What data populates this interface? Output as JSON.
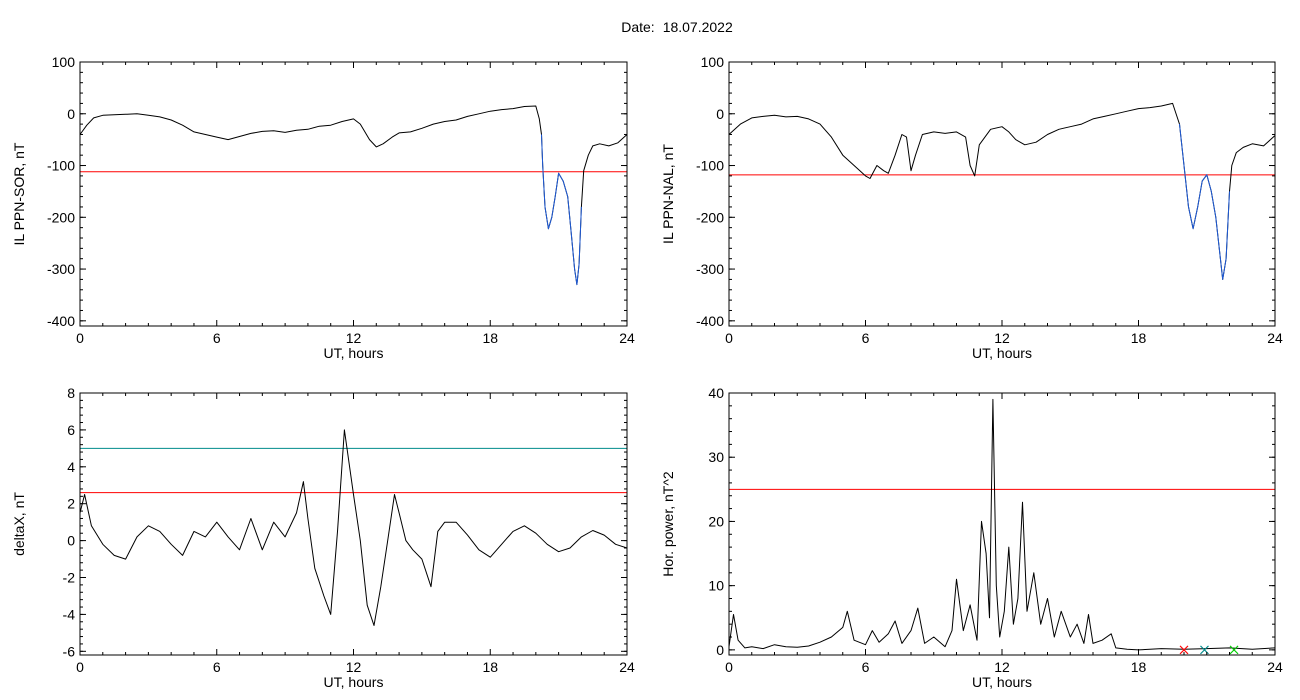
{
  "header": {
    "label": "Date:",
    "value": "18.07.2022"
  },
  "colors": {
    "data": "#000000",
    "threshold_red": "#ff0000",
    "threshold_cyan": "#008b8b",
    "storm_segment": "#1e5bd8",
    "markers": [
      "#ff0000",
      "#008b8b",
      "#00cc00"
    ]
  },
  "chart_data": [
    {
      "type": "line",
      "xlabel": "UT, hours",
      "ylabel": "IL PPN-SOR, nT",
      "xlim": [
        0,
        24
      ],
      "ylim": [
        -410,
        100
      ],
      "xticks": [
        0,
        6,
        12,
        18,
        24
      ],
      "yticks": [
        -400,
        -300,
        -200,
        -100,
        0,
        100
      ],
      "thresholds": [
        {
          "value": -112,
          "color": "#ff0000"
        }
      ],
      "highlight": {
        "from": 20.2,
        "to": 22.0,
        "color": "#1e5bd8"
      },
      "series": [
        {
          "points": [
            [
              0,
              -40
            ],
            [
              0.3,
              -22
            ],
            [
              0.6,
              -8
            ],
            [
              1,
              -3
            ],
            [
              1.5,
              -2
            ],
            [
              2,
              -1
            ],
            [
              2.5,
              0
            ],
            [
              3,
              -3
            ],
            [
              3.5,
              -6
            ],
            [
              4,
              -12
            ],
            [
              4.5,
              -22
            ],
            [
              5,
              -35
            ],
            [
              5.5,
              -40
            ],
            [
              6,
              -45
            ],
            [
              6.5,
              -50
            ],
            [
              7,
              -44
            ],
            [
              7.5,
              -38
            ],
            [
              8,
              -34
            ],
            [
              8.5,
              -33
            ],
            [
              9,
              -36
            ],
            [
              9.5,
              -32
            ],
            [
              10,
              -30
            ],
            [
              10.5,
              -24
            ],
            [
              11,
              -22
            ],
            [
              11.5,
              -15
            ],
            [
              12,
              -10
            ],
            [
              12.3,
              -20
            ],
            [
              12.7,
              -50
            ],
            [
              13,
              -64
            ],
            [
              13.3,
              -58
            ],
            [
              13.7,
              -45
            ],
            [
              14,
              -37
            ],
            [
              14.5,
              -35
            ],
            [
              15,
              -28
            ],
            [
              15.5,
              -20
            ],
            [
              16,
              -15
            ],
            [
              16.5,
              -12
            ],
            [
              17,
              -5
            ],
            [
              17.5,
              0
            ],
            [
              18,
              5
            ],
            [
              18.5,
              8
            ],
            [
              19,
              10
            ],
            [
              19.5,
              14
            ],
            [
              20,
              15
            ],
            [
              20.15,
              -10
            ],
            [
              20.25,
              -40
            ],
            [
              20.3,
              -100
            ],
            [
              20.4,
              -180
            ],
            [
              20.55,
              -222
            ],
            [
              20.7,
              -200
            ],
            [
              20.85,
              -160
            ],
            [
              21,
              -115
            ],
            [
              21.2,
              -130
            ],
            [
              21.4,
              -160
            ],
            [
              21.55,
              -230
            ],
            [
              21.7,
              -300
            ],
            [
              21.8,
              -330
            ],
            [
              21.9,
              -290
            ],
            [
              22,
              -180
            ],
            [
              22.1,
              -110
            ],
            [
              22.3,
              -80
            ],
            [
              22.5,
              -62
            ],
            [
              22.8,
              -58
            ],
            [
              23.2,
              -62
            ],
            [
              23.6,
              -56
            ],
            [
              24,
              -40
            ]
          ]
        }
      ]
    },
    {
      "type": "line",
      "xlabel": "UT, hours",
      "ylabel": "IL PPN-NAL, nT",
      "xlim": [
        0,
        24
      ],
      "ylim": [
        -410,
        100
      ],
      "xticks": [
        0,
        6,
        12,
        18,
        24
      ],
      "yticks": [
        -400,
        -300,
        -200,
        -100,
        0,
        100
      ],
      "thresholds": [
        {
          "value": -118,
          "color": "#ff0000"
        }
      ],
      "highlight": {
        "from": 19.8,
        "to": 22.0,
        "color": "#1e5bd8"
      },
      "series": [
        {
          "points": [
            [
              0,
              -40
            ],
            [
              0.5,
              -20
            ],
            [
              1,
              -8
            ],
            [
              1.5,
              -5
            ],
            [
              2,
              -3
            ],
            [
              2.5,
              -6
            ],
            [
              3,
              -5
            ],
            [
              3.5,
              -10
            ],
            [
              4,
              -20
            ],
            [
              4.5,
              -45
            ],
            [
              5,
              -80
            ],
            [
              5.5,
              -100
            ],
            [
              6,
              -120
            ],
            [
              6.2,
              -125
            ],
            [
              6.5,
              -100
            ],
            [
              6.8,
              -110
            ],
            [
              7,
              -115
            ],
            [
              7.3,
              -80
            ],
            [
              7.6,
              -40
            ],
            [
              7.8,
              -45
            ],
            [
              8,
              -110
            ],
            [
              8.2,
              -80
            ],
            [
              8.5,
              -40
            ],
            [
              9,
              -35
            ],
            [
              9.5,
              -38
            ],
            [
              10,
              -35
            ],
            [
              10.4,
              -45
            ],
            [
              10.6,
              -100
            ],
            [
              10.8,
              -120
            ],
            [
              11,
              -60
            ],
            [
              11.5,
              -30
            ],
            [
              12,
              -25
            ],
            [
              12.3,
              -35
            ],
            [
              12.6,
              -50
            ],
            [
              13,
              -60
            ],
            [
              13.5,
              -55
            ],
            [
              14,
              -40
            ],
            [
              14.5,
              -30
            ],
            [
              15,
              -25
            ],
            [
              15.5,
              -20
            ],
            [
              16,
              -10
            ],
            [
              16.5,
              -5
            ],
            [
              17,
              0
            ],
            [
              17.5,
              5
            ],
            [
              18,
              10
            ],
            [
              18.5,
              12
            ],
            [
              19,
              15
            ],
            [
              19.5,
              20
            ],
            [
              19.8,
              -20
            ],
            [
              20,
              -100
            ],
            [
              20.2,
              -180
            ],
            [
              20.4,
              -222
            ],
            [
              20.6,
              -180
            ],
            [
              20.8,
              -130
            ],
            [
              21,
              -118
            ],
            [
              21.2,
              -150
            ],
            [
              21.4,
              -200
            ],
            [
              21.6,
              -280
            ],
            [
              21.7,
              -320
            ],
            [
              21.85,
              -280
            ],
            [
              22,
              -150
            ],
            [
              22.1,
              -100
            ],
            [
              22.3,
              -75
            ],
            [
              22.6,
              -65
            ],
            [
              23,
              -58
            ],
            [
              23.5,
              -62
            ],
            [
              24,
              -42
            ]
          ]
        }
      ]
    },
    {
      "type": "line",
      "xlabel": "UT, hours",
      "ylabel": "deltaX, nT",
      "xlim": [
        0,
        24
      ],
      "ylim": [
        -6.2,
        8
      ],
      "xticks": [
        0,
        6,
        12,
        18,
        24
      ],
      "yticks": [
        -6,
        -4,
        -2,
        0,
        2,
        4,
        6,
        8
      ],
      "thresholds": [
        {
          "value": 5.0,
          "color": "#008b8b"
        },
        {
          "value": 2.6,
          "color": "#ff0000"
        }
      ],
      "series": [
        {
          "points": [
            [
              0,
              1.5
            ],
            [
              0.2,
              2.5
            ],
            [
              0.5,
              0.8
            ],
            [
              1,
              -0.2
            ],
            [
              1.5,
              -0.8
            ],
            [
              2,
              -1
            ],
            [
              2.5,
              0.2
            ],
            [
              3,
              0.8
            ],
            [
              3.5,
              0.5
            ],
            [
              4,
              -0.2
            ],
            [
              4.5,
              -0.8
            ],
            [
              5,
              0.5
            ],
            [
              5.5,
              0.2
            ],
            [
              6,
              1.0
            ],
            [
              6.5,
              0.2
            ],
            [
              7,
              -0.5
            ],
            [
              7.5,
              1.2
            ],
            [
              8,
              -0.5
            ],
            [
              8.5,
              1.0
            ],
            [
              9,
              0.2
            ],
            [
              9.5,
              1.5
            ],
            [
              9.8,
              3.2
            ],
            [
              10,
              1.2
            ],
            [
              10.3,
              -1.5
            ],
            [
              10.7,
              -3
            ],
            [
              11,
              -4
            ],
            [
              11.3,
              0.5
            ],
            [
              11.6,
              6.0
            ],
            [
              12,
              2.5
            ],
            [
              12.3,
              0
            ],
            [
              12.6,
              -3.5
            ],
            [
              12.9,
              -4.6
            ],
            [
              13.2,
              -2.5
            ],
            [
              13.5,
              0
            ],
            [
              13.8,
              2.5
            ],
            [
              14,
              1.5
            ],
            [
              14.3,
              0
            ],
            [
              14.6,
              -0.5
            ],
            [
              15,
              -1
            ],
            [
              15.4,
              -2.5
            ],
            [
              15.7,
              0.5
            ],
            [
              16,
              1.0
            ],
            [
              16.5,
              1.0
            ],
            [
              17,
              0.3
            ],
            [
              17.5,
              -0.5
            ],
            [
              18,
              -0.9
            ],
            [
              18.5,
              -0.2
            ],
            [
              19,
              0.5
            ],
            [
              19.5,
              0.8
            ],
            [
              20,
              0.4
            ],
            [
              20.5,
              -0.2
            ],
            [
              21,
              -0.6
            ],
            [
              21.5,
              -0.4
            ],
            [
              22,
              0.2
            ],
            [
              22.5,
              0.55
            ],
            [
              23,
              0.3
            ],
            [
              23.5,
              -0.2
            ],
            [
              24,
              -0.4
            ]
          ]
        }
      ]
    },
    {
      "type": "line",
      "xlabel": "UT, hours",
      "ylabel": "Hor. power, nT^2",
      "xlim": [
        0,
        24
      ],
      "ylim": [
        -0.8,
        40
      ],
      "xticks": [
        0,
        6,
        12,
        18,
        24
      ],
      "yticks": [
        0,
        10,
        20,
        30,
        40
      ],
      "thresholds": [
        {
          "value": 25,
          "color": "#ff0000"
        }
      ],
      "markers": [
        {
          "x": 20.0,
          "y": 0,
          "color": "#ff0000"
        },
        {
          "x": 20.9,
          "y": 0,
          "color": "#008b8b"
        },
        {
          "x": 22.2,
          "y": 0,
          "color": "#00cc00"
        }
      ],
      "series": [
        {
          "points": [
            [
              0,
              0.5
            ],
            [
              0.2,
              5.5
            ],
            [
              0.4,
              1.5
            ],
            [
              0.7,
              0.3
            ],
            [
              1,
              0.5
            ],
            [
              1.5,
              0.2
            ],
            [
              2,
              0.8
            ],
            [
              2.5,
              0.5
            ],
            [
              3,
              0.4
            ],
            [
              3.5,
              0.6
            ],
            [
              4,
              1.2
            ],
            [
              4.5,
              2.0
            ],
            [
              5,
              3.5
            ],
            [
              5.2,
              6.0
            ],
            [
              5.5,
              1.5
            ],
            [
              6,
              0.8
            ],
            [
              6.3,
              3.0
            ],
            [
              6.6,
              1.2
            ],
            [
              7,
              2.5
            ],
            [
              7.3,
              4.5
            ],
            [
              7.6,
              1.0
            ],
            [
              8,
              3.0
            ],
            [
              8.3,
              6.5
            ],
            [
              8.6,
              1.0
            ],
            [
              9,
              2.0
            ],
            [
              9.5,
              0.5
            ],
            [
              9.8,
              3.0
            ],
            [
              10,
              11
            ],
            [
              10.3,
              3
            ],
            [
              10.6,
              7
            ],
            [
              10.9,
              1.5
            ],
            [
              11.1,
              20
            ],
            [
              11.3,
              15
            ],
            [
              11.45,
              5
            ],
            [
              11.6,
              39
            ],
            [
              11.75,
              10
            ],
            [
              11.9,
              2
            ],
            [
              12.1,
              6
            ],
            [
              12.3,
              16
            ],
            [
              12.5,
              4
            ],
            [
              12.7,
              8
            ],
            [
              12.9,
              23
            ],
            [
              13.1,
              6
            ],
            [
              13.4,
              12
            ],
            [
              13.7,
              4
            ],
            [
              14,
              8
            ],
            [
              14.3,
              2
            ],
            [
              14.6,
              6
            ],
            [
              15,
              2
            ],
            [
              15.3,
              4
            ],
            [
              15.6,
              1
            ],
            [
              15.8,
              5.5
            ],
            [
              16,
              1
            ],
            [
              16.4,
              1.5
            ],
            [
              16.8,
              2.5
            ],
            [
              17,
              0.3
            ],
            [
              17.5,
              0.1
            ],
            [
              18,
              0
            ],
            [
              19,
              0.2
            ],
            [
              20,
              0.1
            ],
            [
              21,
              0.2
            ],
            [
              22,
              0.3
            ],
            [
              23,
              0.1
            ],
            [
              24,
              0.3
            ]
          ]
        }
      ]
    }
  ]
}
